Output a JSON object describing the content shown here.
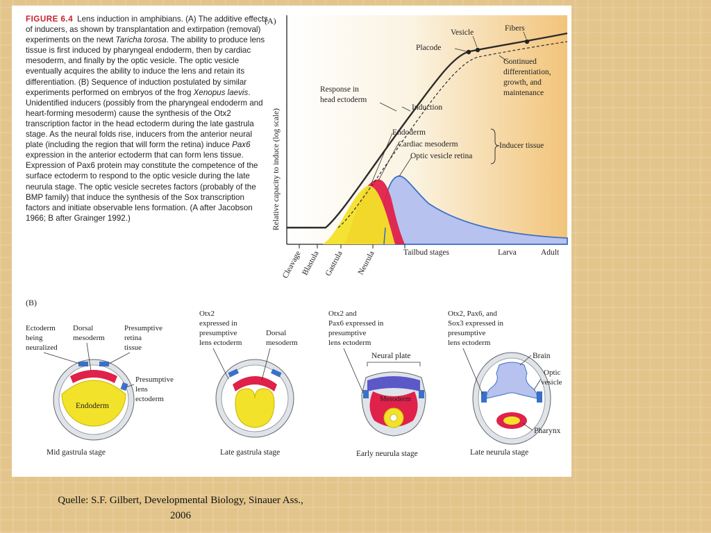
{
  "figure": {
    "label": "FIGURE 6.4",
    "caption_parts": [
      {
        "text": "Lens induction in amphibians. (A) The additive effects of inducers, as shown by transplantation and extirpation (removal) experiments on the newt "
      },
      {
        "text": "Taricha torosa",
        "italic": true
      },
      {
        "text": ". The ability to produce lens tissue is first induced by pharyngeal endoderm, then by cardiac mesoderm, and finally by the optic vesicle. The optic vesicle eventually acquires the ability to induce the lens and retain its differentiation. (B) Sequence of induction postulated by similar experiments performed on embryos of the frog "
      },
      {
        "text": "Xenopus laevis",
        "italic": true
      },
      {
        "text": ". Unidentified inducers (possibly from the pharyngeal endoderm and heart-forming mesoderm) cause the synthesis of the Otx2 transcription factor in the head ectoderm during the late gastrula stage. As the neural folds rise, inducers from the anterior neural plate (including the region that will form the retina) induce "
      },
      {
        "text": "Pax6",
        "italic": true
      },
      {
        "text": " expression in the anterior ectoderm that can form lens tissue. Expression of Pax6 protein may constitute the competence of the surface ectoderm to respond to the optic vesicle during the late neurula stage. The optic vesicle secretes factors (probably of the BMP family) that induce the synthesis of the Sox transcription factors and initiate observable lens formation. (A after Jacobson 1966; B after Grainger 1992.)"
      }
    ]
  },
  "panel_a": {
    "tag": "(A)",
    "y_axis_label": "Relative capacity to induce (log scale)",
    "stage_labels": [
      "Cleavage",
      "Blastula",
      "Gastrula",
      "Neurula"
    ],
    "stage_labels_horizontal": [
      "Tailbud stages",
      "Larva",
      "Adult"
    ],
    "annotations": {
      "placode": "Placode",
      "vesicle": "Vesicle",
      "fibers": "Fibers",
      "continued": [
        "Continued",
        "differentiation,",
        "growth, and",
        "maintenance"
      ],
      "response": [
        "Response in",
        "head ectoderm"
      ],
      "induction": "Induction",
      "endoderm": "Endoderm",
      "cardiac": "Cardiac mesoderm",
      "optic_retina": "Optic vesicle retina",
      "inducer_tissue": "Inducer tissue"
    },
    "colors": {
      "endoderm": "#f3e22a",
      "cardiac": "#e0214a",
      "optic": "#b7c2ef",
      "optic_line": "#3b70c8",
      "gradient_end": "#f2c47a"
    }
  },
  "panel_b": {
    "tag": "(B)",
    "stages": [
      {
        "name": "Mid gastrula stage",
        "labels": {
          "ectoderm": [
            "Ectoderm",
            "being",
            "neuralized"
          ],
          "dorsal": [
            "Dorsal",
            "mesoderm"
          ],
          "retina": [
            "Presumptive",
            "retina",
            "tissue"
          ],
          "lens": [
            "Presumptive",
            "lens",
            "ectoderm"
          ],
          "endoderm": "Endoderm"
        }
      },
      {
        "name": "Late gastrula stage",
        "labels": {
          "otx2": [
            "Otx2",
            "expressed in",
            "presumptive",
            "lens ectoderm"
          ],
          "dorsal": [
            "Dorsal",
            "mesoderm"
          ]
        }
      },
      {
        "name": "Early neurula stage",
        "labels": {
          "otx2pax6": [
            "Otx2 and",
            "Pax6 expressed in",
            "presumptive",
            "lens ectoderm"
          ],
          "neural_plate": "Neural plate",
          "mesoderm": "Mesoderm"
        }
      },
      {
        "name": "Late neurula stage",
        "labels": {
          "sox3": [
            "Otx2, Pax6, and",
            "Sox3 expressed in",
            "presumptive",
            "lens ectoderm"
          ],
          "brain": "Brain",
          "optic": [
            "Optic",
            "vesicle"
          ],
          "pharynx": "Pharynx"
        }
      }
    ]
  },
  "source": {
    "line1": "Quelle: S.F. Gilbert, Developmental Biology, Sinauer Ass.,",
    "line2": "2006"
  }
}
